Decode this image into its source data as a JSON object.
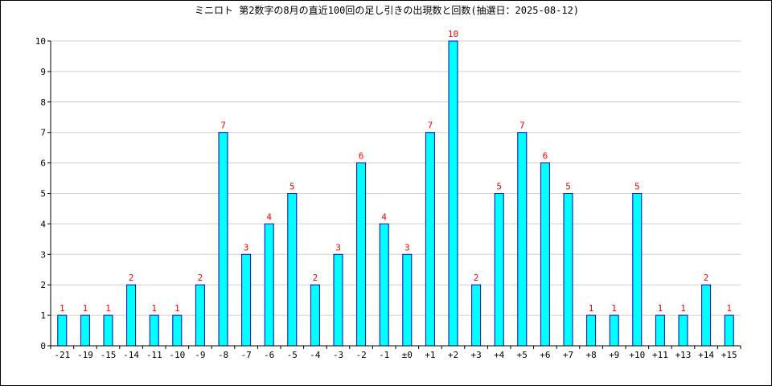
{
  "chart_data": {
    "type": "bar",
    "title": "ミニロト 第2数字の8月の直近100回の足し引きの出現数と回数(抽選日：2025-08-12)",
    "xlabel": "",
    "ylabel": "",
    "categories": [
      "-21",
      "-19",
      "-15",
      "-14",
      "-11",
      "-10",
      "-9",
      "-8",
      "-7",
      "-6",
      "-5",
      "-4",
      "-3",
      "-2",
      "-1",
      "±0",
      "+1",
      "+2",
      "+3",
      "+4",
      "+5",
      "+6",
      "+7",
      "+8",
      "+9",
      "+10",
      "+11",
      "+13",
      "+14",
      "+15"
    ],
    "values": [
      1,
      1,
      1,
      2,
      1,
      1,
      2,
      7,
      3,
      4,
      5,
      2,
      3,
      6,
      4,
      3,
      7,
      10,
      2,
      5,
      7,
      6,
      5,
      1,
      1,
      5,
      1,
      1,
      2,
      1
    ],
    "ylim": [
      0,
      10
    ],
    "yticks": [
      0,
      1,
      2,
      3,
      4,
      5,
      6,
      7,
      8,
      9,
      10
    ],
    "grid": true,
    "bar_color": "#00ffff",
    "bar_edge_color": "#0000cc",
    "label_color": "#ff0000",
    "grid_color": "#d0d0d0"
  }
}
